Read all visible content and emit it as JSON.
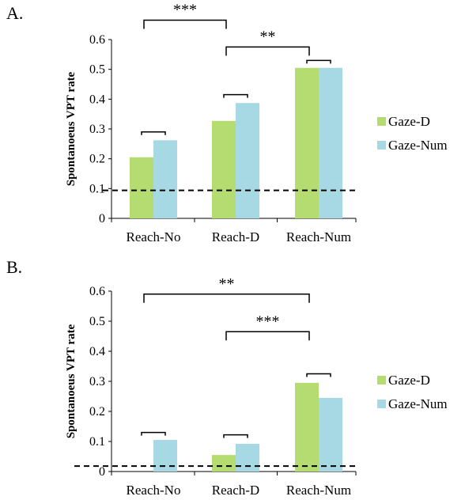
{
  "chart_data": [
    {
      "panel_label": "A.",
      "type": "bar",
      "categories": [
        "Reach-No",
        "Reach-D",
        "Reach-Num"
      ],
      "series": [
        {
          "name": "Gaze-D",
          "values": [
            0.205,
            0.327,
            0.505
          ]
        },
        {
          "name": "Gaze-Num",
          "values": [
            0.262,
            0.387,
            0.505
          ]
        }
      ],
      "ylabel": "Spontanoeus VPT rate",
      "ylim": [
        0,
        0.6
      ],
      "yticks": [
        "0",
        "0.1",
        "0.2",
        "0.3",
        "0.4",
        "0.5",
        "0.6"
      ],
      "reference_line": 0.094,
      "legend_position": "right",
      "pair_brackets": [
        {
          "category": "Reach-No",
          "level": 0.29
        },
        {
          "category": "Reach-D",
          "level": 0.415
        },
        {
          "category": "Reach-Num",
          "level": 0.53
        }
      ],
      "significance": [
        {
          "from": "Reach-No",
          "to": "Reach-D",
          "level": 0.665,
          "label": "***"
        },
        {
          "from": "Reach-D",
          "to": "Reach-Num",
          "level": 0.575,
          "label": "**"
        }
      ]
    },
    {
      "panel_label": "B.",
      "type": "bar",
      "categories": [
        "Reach-No",
        "Reach-D",
        "Reach-Num"
      ],
      "series": [
        {
          "name": "Gaze-D",
          "values": [
            0.0,
            0.055,
            0.295
          ]
        },
        {
          "name": "Gaze-Num",
          "values": [
            0.105,
            0.092,
            0.245
          ]
        }
      ],
      "ylabel": "Spontanoeus VPT rate",
      "ylim": [
        0,
        0.6
      ],
      "yticks": [
        "0",
        "0.1",
        "0.2",
        "0.3",
        "0.4",
        "0.5",
        "0.6"
      ],
      "reference_line": 0.018,
      "legend_position": "right",
      "pair_brackets": [
        {
          "category": "Reach-No",
          "level": 0.13
        },
        {
          "category": "Reach-D",
          "level": 0.122
        },
        {
          "category": "Reach-Num",
          "level": 0.325
        }
      ],
      "significance": [
        {
          "from": "Reach-No",
          "to": "Reach-Num",
          "level": 0.59,
          "label": "**"
        },
        {
          "from": "Reach-D",
          "to": "Reach-Num",
          "level": 0.465,
          "label": "***"
        }
      ]
    }
  ],
  "colors": {
    "gaze_d": "#b5dc70",
    "gaze_num": "#a6d9e3"
  }
}
